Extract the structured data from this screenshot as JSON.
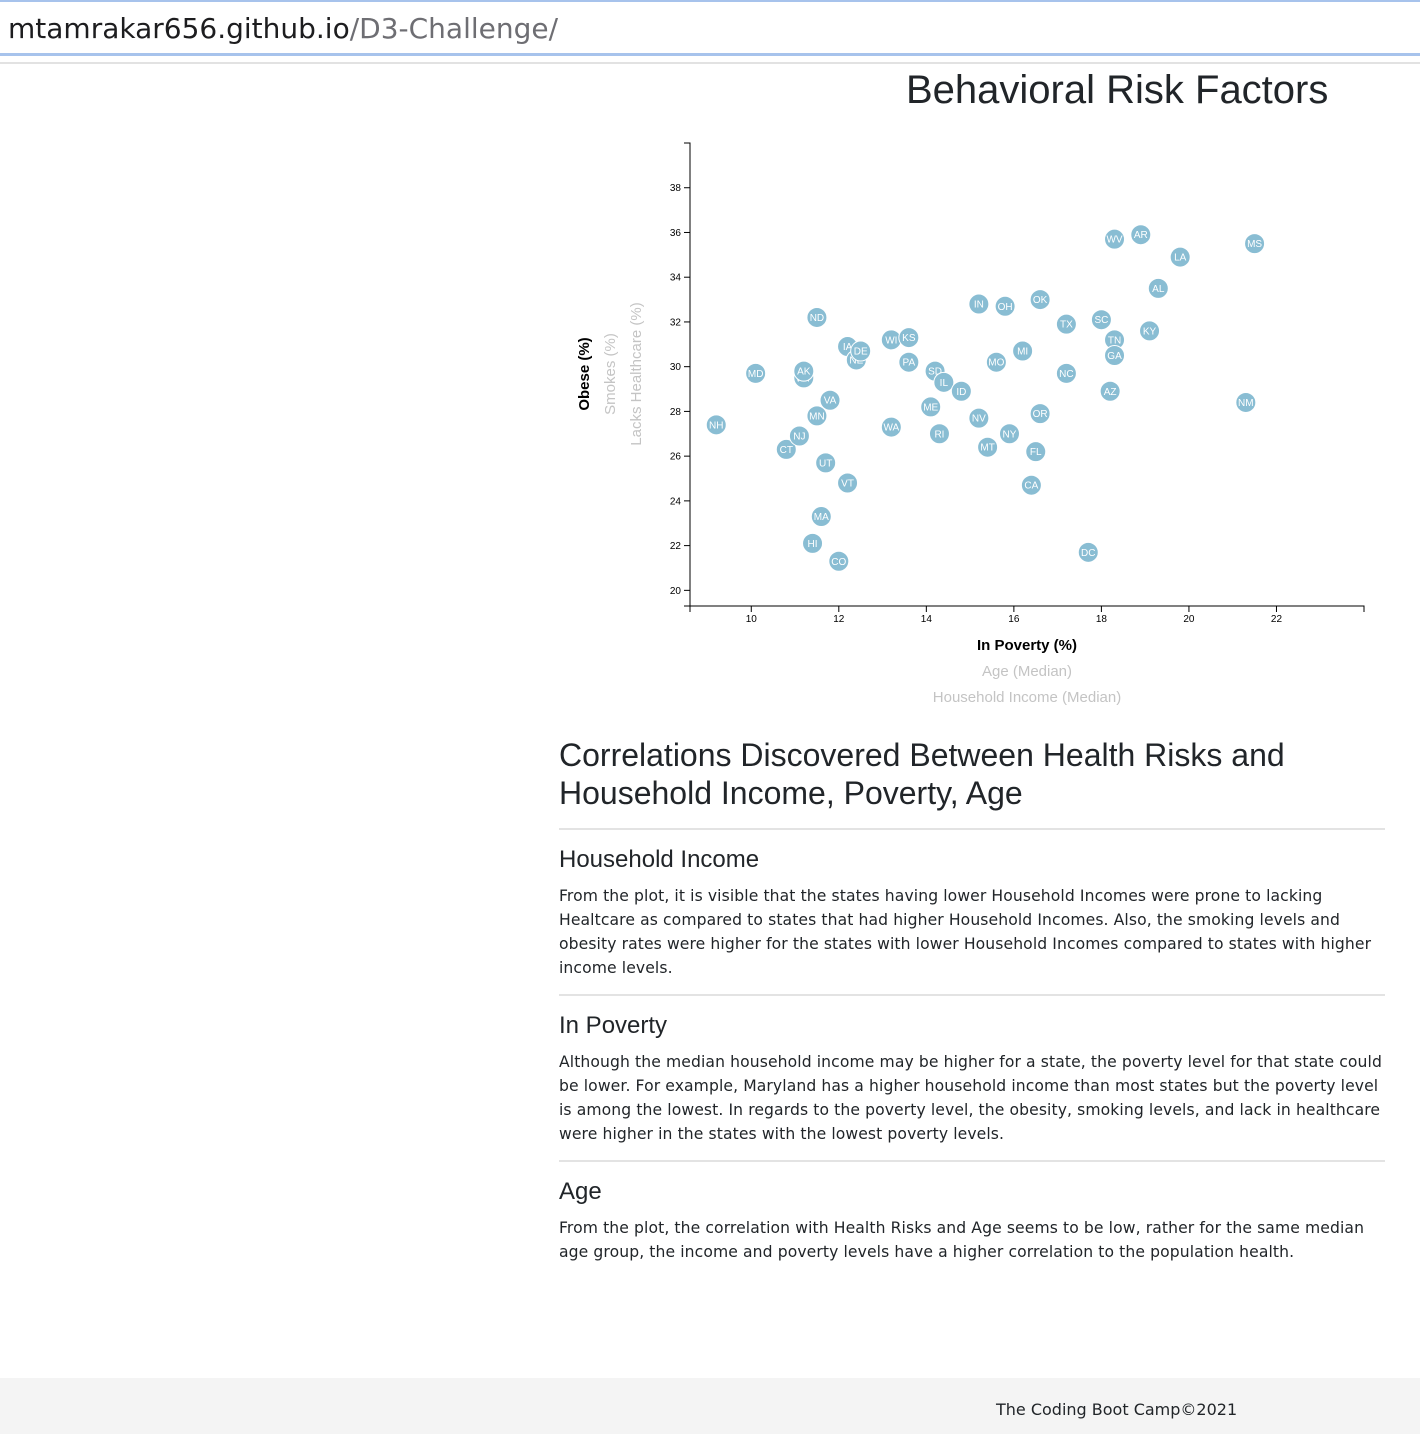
{
  "browser": {
    "url_host": "mtamrakar656.github.io",
    "url_path": "/D3-Challenge/"
  },
  "page": {
    "title": "Behavioral Risk Factors"
  },
  "chart_data": {
    "type": "scatter",
    "xlim": [
      8.6,
      24
    ],
    "ylim": [
      19.3,
      40
    ],
    "x_ticks": [
      10,
      12,
      14,
      16,
      18,
      20,
      22
    ],
    "y_ticks": [
      20,
      22,
      24,
      26,
      28,
      30,
      32,
      34,
      36,
      38
    ],
    "x_axis_labels": [
      {
        "text": "In Poverty (%)",
        "active": true
      },
      {
        "text": "Age (Median)",
        "active": false
      },
      {
        "text": "Household Income (Median)",
        "active": false
      }
    ],
    "y_axis_labels": [
      {
        "text": "Obese (%)",
        "active": true
      },
      {
        "text": "Smokes (%)",
        "active": false
      },
      {
        "text": "Lacks Healthcare (%)",
        "active": false
      }
    ],
    "point_color": "#89bdd3",
    "points": [
      {
        "abbr": "NH",
        "x": 9.2,
        "y": 27.4
      },
      {
        "abbr": "MD",
        "x": 10.1,
        "y": 29.7
      },
      {
        "abbr": "CT",
        "x": 10.8,
        "y": 26.3
      },
      {
        "abbr": "NJ",
        "x": 11.1,
        "y": 26.9
      },
      {
        "abbr": "WY",
        "x": 11.2,
        "y": 29.5
      },
      {
        "abbr": "AK",
        "x": 11.2,
        "y": 29.8
      },
      {
        "abbr": "HI",
        "x": 11.4,
        "y": 22.1
      },
      {
        "abbr": "ND",
        "x": 11.5,
        "y": 32.2
      },
      {
        "abbr": "MN",
        "x": 11.5,
        "y": 27.8
      },
      {
        "abbr": "MA",
        "x": 11.6,
        "y": 23.3
      },
      {
        "abbr": "UT",
        "x": 11.7,
        "y": 25.7
      },
      {
        "abbr": "VA",
        "x": 11.8,
        "y": 28.5
      },
      {
        "abbr": "CO",
        "x": 12.0,
        "y": 21.3
      },
      {
        "abbr": "IA",
        "x": 12.2,
        "y": 30.9
      },
      {
        "abbr": "VT",
        "x": 12.2,
        "y": 24.8
      },
      {
        "abbr": "NE",
        "x": 12.4,
        "y": 30.3
      },
      {
        "abbr": "DE",
        "x": 12.5,
        "y": 30.7
      },
      {
        "abbr": "WI",
        "x": 13.2,
        "y": 31.2
      },
      {
        "abbr": "WA",
        "x": 13.2,
        "y": 27.3
      },
      {
        "abbr": "KS",
        "x": 13.6,
        "y": 31.3
      },
      {
        "abbr": "PA",
        "x": 13.6,
        "y": 30.2
      },
      {
        "abbr": "ME",
        "x": 14.1,
        "y": 28.2
      },
      {
        "abbr": "SD",
        "x": 14.2,
        "y": 29.8
      },
      {
        "abbr": "RI",
        "x": 14.3,
        "y": 27.0
      },
      {
        "abbr": "IL",
        "x": 14.4,
        "y": 29.3
      },
      {
        "abbr": "ID",
        "x": 14.8,
        "y": 28.9
      },
      {
        "abbr": "IN",
        "x": 15.2,
        "y": 32.8
      },
      {
        "abbr": "NV",
        "x": 15.2,
        "y": 27.7
      },
      {
        "abbr": "MT",
        "x": 15.4,
        "y": 26.4
      },
      {
        "abbr": "MO",
        "x": 15.6,
        "y": 30.2
      },
      {
        "abbr": "OH",
        "x": 15.8,
        "y": 32.7
      },
      {
        "abbr": "NY",
        "x": 15.9,
        "y": 27.0
      },
      {
        "abbr": "MI",
        "x": 16.2,
        "y": 30.7
      },
      {
        "abbr": "FL",
        "x": 16.5,
        "y": 26.2
      },
      {
        "abbr": "CA",
        "x": 16.4,
        "y": 24.7
      },
      {
        "abbr": "OK",
        "x": 16.6,
        "y": 33.0
      },
      {
        "abbr": "OR",
        "x": 16.6,
        "y": 27.9
      },
      {
        "abbr": "TX",
        "x": 17.2,
        "y": 31.9
      },
      {
        "abbr": "NC",
        "x": 17.2,
        "y": 29.7
      },
      {
        "abbr": "DC",
        "x": 17.7,
        "y": 21.7
      },
      {
        "abbr": "SC",
        "x": 18.0,
        "y": 32.1
      },
      {
        "abbr": "AZ",
        "x": 18.2,
        "y": 28.9
      },
      {
        "abbr": "TN",
        "x": 18.3,
        "y": 31.2
      },
      {
        "abbr": "GA",
        "x": 18.3,
        "y": 30.5
      },
      {
        "abbr": "WV",
        "x": 18.3,
        "y": 35.7
      },
      {
        "abbr": "AR",
        "x": 18.9,
        "y": 35.9
      },
      {
        "abbr": "KY",
        "x": 19.1,
        "y": 31.6
      },
      {
        "abbr": "AL",
        "x": 19.3,
        "y": 33.5
      },
      {
        "abbr": "LA",
        "x": 19.8,
        "y": 34.9
      },
      {
        "abbr": "NM",
        "x": 21.3,
        "y": 28.4
      },
      {
        "abbr": "MS",
        "x": 21.5,
        "y": 35.5
      }
    ]
  },
  "analysis": {
    "heading": "Correlations Discovered Between Health Risks and Household Income, Poverty, Age",
    "sections": [
      {
        "title": "Household Income",
        "text": "From the plot, it is visible that the states having lower Household Incomes were prone to lacking Healtcare as compared to states that had higher Household Incomes. Also, the smoking levels and obesity rates were higher for the states with lower Household Incomes compared to states with higher income levels."
      },
      {
        "title": "In Poverty",
        "text": "Although the median household income may be higher for a state, the poverty level for that state could be lower. For example, Maryland has a higher household income than most states but the poverty level is among the lowest. In regards to the poverty level, the obesity, smoking levels, and lack in healthcare were higher in the states with the lowest poverty levels."
      },
      {
        "title": "Age",
        "text": "From the plot, the correlation with Health Risks and Age seems to be low, rather for the same median age group, the income and poverty levels have a higher correlation to the population health."
      }
    ]
  },
  "footer": {
    "text": "The Coding Boot Camp©2021"
  }
}
